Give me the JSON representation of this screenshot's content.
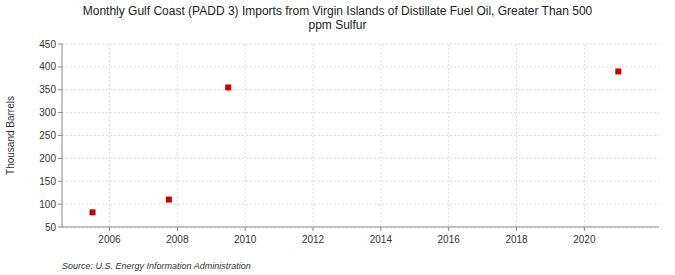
{
  "chart_data": {
    "type": "scatter",
    "title": "Monthly Gulf Coast (PADD 3) Imports from Virgin Islands of Distillate Fuel Oil, Greater Than 500\nppm Sulfur",
    "ylabel": "Thousand Barrels",
    "source": "Source: U.S. Energy Information Administration",
    "x": [
      2005.5,
      2007.75,
      2009.5,
      2021.0
    ],
    "values": [
      82,
      110,
      355,
      390
    ],
    "color": "#cc0000",
    "marker": "square",
    "xlim": [
      2004.6,
      2022.2
    ],
    "ylim": [
      50,
      450
    ],
    "xticks": [
      2006,
      2008,
      2010,
      2012,
      2014,
      2016,
      2018,
      2020
    ],
    "yticks": [
      50,
      100,
      150,
      200,
      250,
      300,
      350,
      400,
      450
    ],
    "grid": true
  }
}
